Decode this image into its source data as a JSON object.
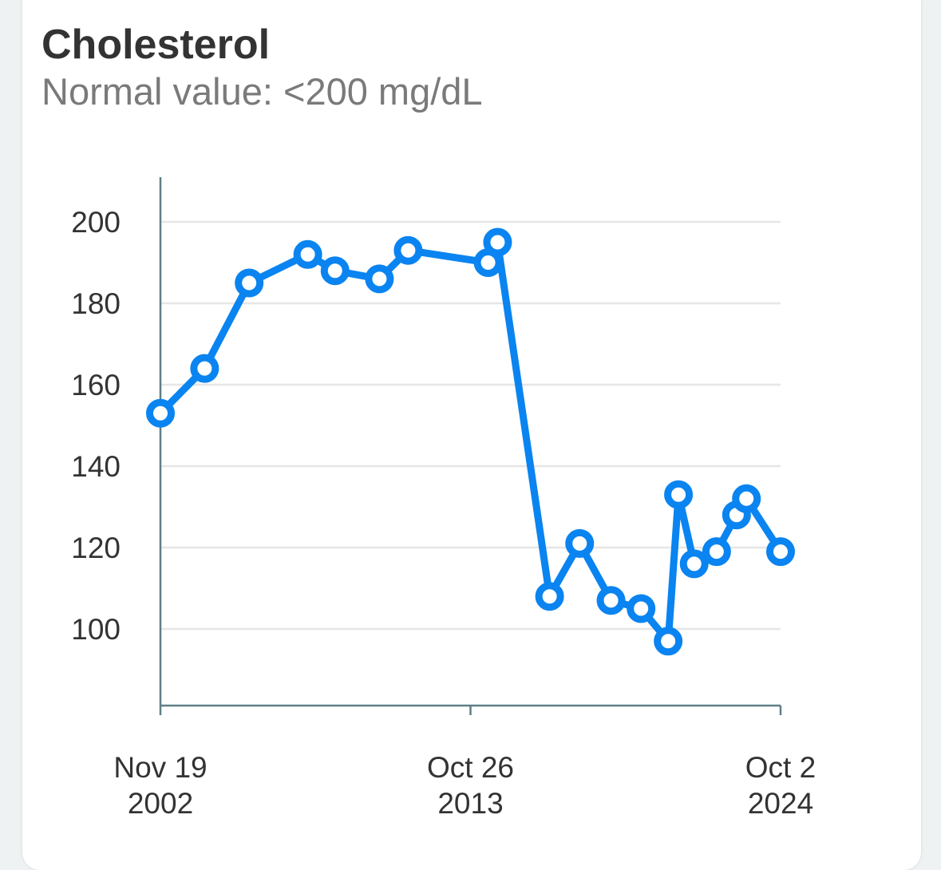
{
  "card": {
    "title": "Cholesterol",
    "subtitle": "Normal value: <200 mg/dL"
  },
  "colors": {
    "line": "#0a84f0",
    "grid": "#e6e6e6",
    "axis": "#5f7f87",
    "marker_fill": "#ffffff",
    "text": "#333333",
    "subtitle": "#7a7a7a"
  },
  "chart_data": {
    "type": "line",
    "title": "Cholesterol",
    "subtitle": "Normal value: <200 mg/dL",
    "xlabel": "",
    "ylabel": "",
    "ylim": [
      82,
      211
    ],
    "xlim": [
      "2002-11-19",
      "2024-10-02"
    ],
    "yticks": [
      100,
      120,
      140,
      160,
      180,
      200
    ],
    "xticks": [
      {
        "date": "2002-11-19",
        "label_line1": "Nov 19",
        "label_line2": "2002"
      },
      {
        "date": "2013-10-26",
        "label_line1": "Oct 26",
        "label_line2": "2013"
      },
      {
        "date": "2024-10-02",
        "label_line1": "Oct 2",
        "label_line2": "2024"
      }
    ],
    "grid": true,
    "series": [
      {
        "points": [
          {
            "x": "2002-11-19",
            "y": 153
          },
          {
            "x": "2004-06-10",
            "y": 164
          },
          {
            "x": "2006-01-05",
            "y": 185
          },
          {
            "x": "2008-01-30",
            "y": 192
          },
          {
            "x": "2009-01-15",
            "y": 188
          },
          {
            "x": "2010-08-10",
            "y": 186
          },
          {
            "x": "2011-08-15",
            "y": 193
          },
          {
            "x": "2014-06-10",
            "y": 190
          },
          {
            "x": "2014-10-10",
            "y": 195
          },
          {
            "x": "2016-08-10",
            "y": 108
          },
          {
            "x": "2017-09-01",
            "y": 121
          },
          {
            "x": "2018-10-10",
            "y": 107
          },
          {
            "x": "2019-11-01",
            "y": 105
          },
          {
            "x": "2020-10-15",
            "y": 97
          },
          {
            "x": "2021-02-25",
            "y": 133
          },
          {
            "x": "2021-09-15",
            "y": 116
          },
          {
            "x": "2022-07-01",
            "y": 119
          },
          {
            "x": "2023-03-15",
            "y": 128
          },
          {
            "x": "2023-07-20",
            "y": 132
          },
          {
            "x": "2024-10-02",
            "y": 119
          }
        ]
      }
    ]
  }
}
